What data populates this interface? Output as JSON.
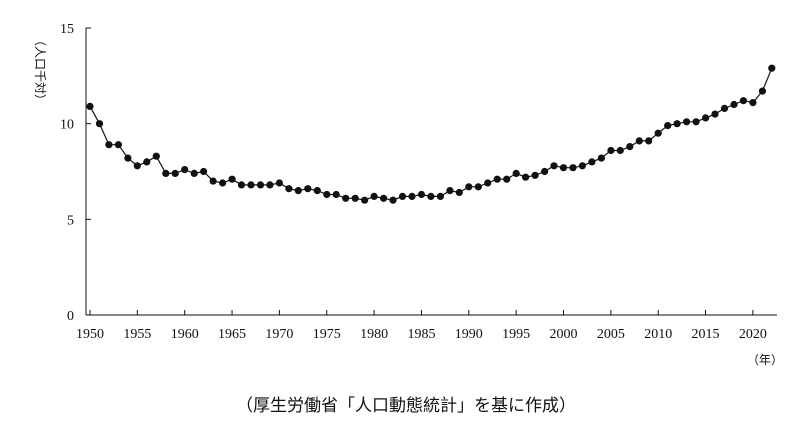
{
  "chart_data": {
    "type": "line",
    "x_start": 1950,
    "x_ticks": [
      "1950",
      "1955",
      "1960",
      "1965",
      "1970",
      "1975",
      "1980",
      "1985",
      "1990",
      "1995",
      "2000",
      "2005",
      "2010",
      "2015",
      "2020"
    ],
    "y_ticks": [
      "0",
      "5",
      "10",
      "15"
    ],
    "xlim": [
      1950,
      2023
    ],
    "ylim": [
      0,
      15
    ],
    "ylabel": "（人口千対）",
    "xlabel": "（年）",
    "grid": false,
    "values": [
      10.9,
      10.0,
      8.9,
      8.9,
      8.2,
      7.8,
      8.0,
      8.3,
      7.4,
      7.4,
      7.6,
      7.4,
      7.5,
      7.0,
      6.9,
      7.1,
      6.8,
      6.8,
      6.8,
      6.8,
      6.9,
      6.6,
      6.5,
      6.6,
      6.5,
      6.3,
      6.3,
      6.1,
      6.1,
      6.0,
      6.2,
      6.1,
      6.0,
      6.2,
      6.2,
      6.3,
      6.2,
      6.2,
      6.5,
      6.4,
      6.7,
      6.7,
      6.9,
      7.1,
      7.1,
      7.4,
      7.2,
      7.3,
      7.5,
      7.8,
      7.7,
      7.7,
      7.8,
      8.0,
      8.2,
      8.6,
      8.6,
      8.8,
      9.1,
      9.1,
      9.5,
      9.9,
      10.0,
      10.1,
      10.1,
      10.3,
      10.5,
      10.8,
      11.0,
      11.2,
      11.1,
      11.7,
      12.9
    ],
    "marker": "filled-circle",
    "line_color": "#111111",
    "marker_color": "#111111"
  },
  "caption": "（厚生労働省「人口動態統計」を基に作成）"
}
